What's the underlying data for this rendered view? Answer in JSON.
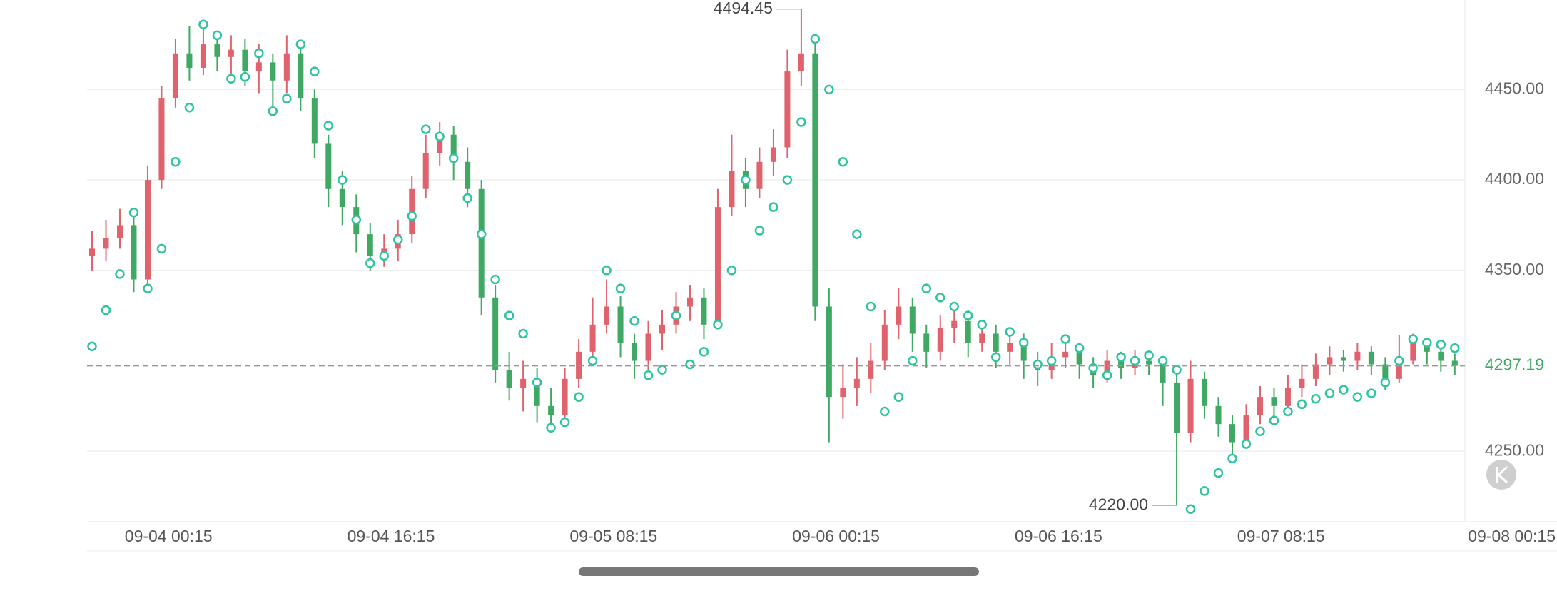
{
  "chart_data": {
    "type": "candlestick",
    "x": [
      -5.5,
      -4.5,
      -3.5,
      -2.5,
      -1.5,
      -0.5,
      0.5,
      1.5,
      2.5,
      3.5,
      4.5,
      5.5,
      6.5,
      7.5,
      8.5,
      9.5,
      10.5,
      11.5,
      12.5,
      13.5,
      14.5,
      15.5,
      16.5,
      17.5,
      18.5,
      19.5,
      20.5,
      21.5,
      22.5,
      23.5,
      24.5,
      25.5,
      26.5,
      27.5,
      28.5,
      29.5,
      30.5,
      31.5,
      32.5,
      33.5,
      34.5,
      35.5,
      36.5,
      37.5,
      38.5,
      39.5,
      40.5,
      41.5,
      42.5,
      43.5,
      44.5,
      45.5,
      46.5,
      47.5,
      48.5,
      49.5,
      50.5,
      51.5,
      52.5,
      53.5,
      54.5,
      55.5,
      56.5,
      57.5,
      58.5,
      59.5,
      60.5,
      61.5,
      62.5,
      63.5,
      64.5,
      65.5,
      66.5,
      67.5,
      68.5,
      69.5,
      70.5,
      71.5,
      72.5,
      73.5,
      74.5,
      75.5,
      76.5,
      77.5,
      78.5,
      79.5,
      80.5,
      81.5,
      82.5,
      83.5,
      84.5,
      85.5,
      86.5,
      87.5,
      88.5,
      89.5,
      90.5,
      91.5,
      92.5
    ],
    "open": [
      4358,
      4362,
      4368,
      4375,
      4345,
      4400,
      4445,
      4470,
      4462,
      4475,
      4468,
      4472,
      4460,
      4465,
      4455,
      4470,
      4445,
      4420,
      4395,
      4385,
      4370,
      4358,
      4362,
      4370,
      4395,
      4415,
      4425,
      4410,
      4395,
      4335,
      4295,
      4285,
      4290,
      4275,
      4270,
      4290,
      4305,
      4320,
      4330,
      4310,
      4300,
      4315,
      4320,
      4330,
      4335,
      4320,
      4385,
      4405,
      4395,
      4410,
      4418,
      4460,
      4470,
      4330,
      4280,
      4285,
      4290,
      4300,
      4320,
      4330,
      4315,
      4305,
      4318,
      4322,
      4310,
      4315,
      4305,
      4310,
      4300,
      4295,
      4302,
      4305,
      4298,
      4292,
      4300,
      4296,
      4300,
      4298,
      4288,
      4260,
      4290,
      4275,
      4265,
      4255,
      4270,
      4280,
      4275,
      4285,
      4290,
      4298,
      4302,
      4300,
      4305,
      4298,
      4290,
      4300,
      4310,
      4305,
      4300
    ],
    "high": [
      4372,
      4378,
      4384,
      4380,
      4408,
      4452,
      4478,
      4485,
      4488,
      4482,
      4480,
      4478,
      4475,
      4470,
      4480,
      4475,
      4450,
      4425,
      4405,
      4392,
      4376,
      4370,
      4378,
      4402,
      4425,
      4432,
      4430,
      4418,
      4400,
      4342,
      4305,
      4300,
      4296,
      4285,
      4296,
      4312,
      4335,
      4345,
      4336,
      4315,
      4322,
      4328,
      4338,
      4342,
      4340,
      4395,
      4425,
      4412,
      4418,
      4428,
      4472,
      4494.45,
      4478,
      4340,
      4298,
      4302,
      4310,
      4328,
      4340,
      4335,
      4320,
      4325,
      4330,
      4328,
      4322,
      4320,
      4318,
      4315,
      4305,
      4310,
      4312,
      4310,
      4302,
      4306,
      4305,
      4306,
      4305,
      4302,
      4295,
      4300,
      4294,
      4280,
      4270,
      4276,
      4286,
      4285,
      4292,
      4298,
      4304,
      4308,
      4306,
      4310,
      4308,
      4302,
      4314,
      4315,
      4312,
      4308,
      4304
    ],
    "low": [
      4350,
      4355,
      4362,
      4338,
      4340,
      4395,
      4440,
      4455,
      4458,
      4460,
      4458,
      4452,
      4448,
      4440,
      4448,
      4438,
      4412,
      4385,
      4375,
      4360,
      4350,
      4352,
      4355,
      4365,
      4390,
      4408,
      4400,
      4385,
      4325,
      4288,
      4278,
      4272,
      4266,
      4262,
      4265,
      4285,
      4300,
      4315,
      4302,
      4290,
      4295,
      4306,
      4315,
      4322,
      4312,
      4318,
      4380,
      4385,
      4390,
      4402,
      4412,
      4452,
      4322,
      4255,
      4268,
      4275,
      4282,
      4295,
      4312,
      4305,
      4296,
      4300,
      4310,
      4302,
      4305,
      4296,
      4298,
      4290,
      4286,
      4290,
      4296,
      4290,
      4285,
      4288,
      4290,
      4292,
      4292,
      4275,
      4220,
      4255,
      4268,
      4258,
      4248,
      4252,
      4265,
      4268,
      4272,
      4280,
      4286,
      4292,
      4294,
      4295,
      4292,
      4284,
      4288,
      4298,
      4298,
      4294,
      4292
    ],
    "close": [
      4362,
      4368,
      4375,
      4345,
      4400,
      4445,
      4470,
      4462,
      4475,
      4468,
      4472,
      4460,
      4465,
      4455,
      4470,
      4445,
      4420,
      4395,
      4385,
      4370,
      4358,
      4362,
      4370,
      4395,
      4415,
      4425,
      4410,
      4395,
      4335,
      4295,
      4285,
      4290,
      4275,
      4270,
      4290,
      4305,
      4320,
      4330,
      4310,
      4300,
      4315,
      4320,
      4330,
      4335,
      4320,
      4385,
      4405,
      4395,
      4410,
      4418,
      4460,
      4470,
      4330,
      4280,
      4285,
      4290,
      4300,
      4320,
      4330,
      4315,
      4305,
      4318,
      4322,
      4310,
      4315,
      4305,
      4310,
      4300,
      4295,
      4302,
      4305,
      4298,
      4292,
      4300,
      4296,
      4300,
      4298,
      4288,
      4260,
      4290,
      4275,
      4265,
      4255,
      4270,
      4280,
      4275,
      4285,
      4290,
      4298,
      4302,
      4300,
      4305,
      4298,
      4290,
      4300,
      4310,
      4305,
      4300,
      4297.19
    ],
    "sar": [
      4308,
      4328,
      4348,
      4382,
      4340,
      4362,
      4410,
      4440,
      4486,
      4480,
      4456,
      4457,
      4470,
      4438,
      4445,
      4475,
      4460,
      4430,
      4400,
      4378,
      4354,
      4358,
      4367,
      4380,
      4428,
      4424,
      4412,
      4390,
      4370,
      4345,
      4325,
      4315,
      4288,
      4263,
      4266,
      4280,
      4300,
      4350,
      4340,
      4322,
      4292,
      4295,
      4325,
      4298,
      4305,
      4320,
      4350,
      4400,
      4372,
      4385,
      4400,
      4432,
      4478,
      4450,
      4410,
      4370,
      4330,
      4272,
      4280,
      4300,
      4340,
      4335,
      4330,
      4325,
      4320,
      4302,
      4316,
      4310,
      4298,
      4300,
      4312,
      4307,
      4296,
      4292,
      4302,
      4300,
      4303,
      4300,
      4295,
      4218,
      4228,
      4238,
      4246,
      4254,
      4261,
      4267,
      4272,
      4276,
      4279,
      4282,
      4284,
      4280,
      4282,
      4288,
      4300,
      4312,
      4310,
      4309,
      4307
    ],
    "up_color": "#e0626c",
    "down_color": "#3fa862",
    "sar_color": "#2ec4a0",
    "xlim": [
      -5.86,
      96
    ],
    "ylim": [
      4211,
      4499.5
    ],
    "xticks": [
      {
        "value": 0,
        "label": "09-04 00:15"
      },
      {
        "value": 16,
        "label": "09-04 16:15"
      },
      {
        "value": 32,
        "label": "09-05 08:15"
      },
      {
        "value": 48,
        "label": "09-06 00:15"
      },
      {
        "value": 64,
        "label": "09-06 16:15"
      },
      {
        "value": 80,
        "label": "09-07 08:15"
      },
      {
        "value": 96,
        "label": "09-08 00:15"
      }
    ],
    "yticks": [
      {
        "value": 4250,
        "label": "4250.00"
      },
      {
        "value": 4350,
        "label": "4350.00"
      },
      {
        "value": 4400,
        "label": "4400.00"
      },
      {
        "value": 4450,
        "label": "4450.00"
      }
    ],
    "grid": true,
    "last_price": {
      "value": 4297.19,
      "label": "4297.19",
      "color": "#3fa862"
    },
    "annotations": [
      {
        "x": 45.5,
        "value": 4494.45,
        "label": "4494.45"
      },
      {
        "x": 72.5,
        "value": 4220,
        "label": "4220.00"
      }
    ]
  }
}
